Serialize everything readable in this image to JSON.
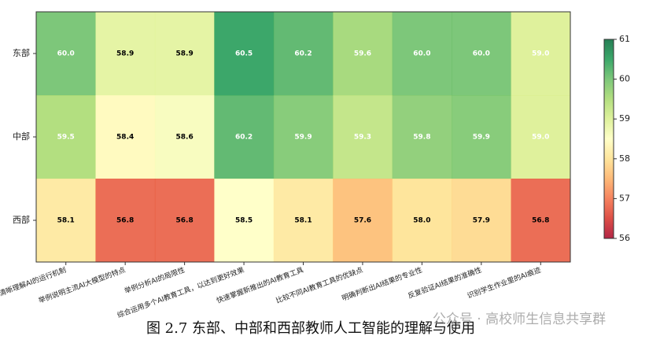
{
  "chart_data": {
    "type": "heatmap",
    "rows": [
      "东部",
      "中部",
      "西部"
    ],
    "categories": [
      "清晰理解AI的运行机制",
      "举例说明主流AI大模型的特点",
      "举例分析AI的局限性",
      "综合运用多个AI教育工具，以达到更好效果",
      "快速掌握新推出的AI教育工具",
      "比较不同AI教育工具的优缺点",
      "明确判断出AI结果的专业性",
      "反复验证AI结果的准确性",
      "识别学生作业里的AI痕迹"
    ],
    "values": [
      [
        60.0,
        58.9,
        58.9,
        60.5,
        60.2,
        59.6,
        60.0,
        60.0,
        59.0
      ],
      [
        59.5,
        58.4,
        58.6,
        60.2,
        59.9,
        59.3,
        59.8,
        59.9,
        59.0
      ],
      [
        58.1,
        56.8,
        56.8,
        58.5,
        58.1,
        57.6,
        58.0,
        57.9,
        56.8
      ]
    ],
    "value_labels": [
      [
        "60.0",
        "58.9",
        "58.9",
        "60.5",
        "60.2",
        "59.6",
        "60.0",
        "60.0",
        "59.0"
      ],
      [
        "59.5",
        "58.4",
        "58.6",
        "60.2",
        "59.9",
        "59.3",
        "59.8",
        "59.9",
        "59.0"
      ],
      [
        "58.1",
        "56.8",
        "56.8",
        "58.5",
        "58.1",
        "57.6",
        "58.0",
        "57.9",
        "56.8"
      ]
    ],
    "colormap": "RdYlGn",
    "clim": [
      56,
      61
    ],
    "cticks": [
      56,
      57,
      58,
      59,
      60,
      61
    ],
    "caption": "图 2.7 东部、中部和西部教师人工智能的理解与使用",
    "watermark": "公众号 · 高校师生信息共享群"
  }
}
